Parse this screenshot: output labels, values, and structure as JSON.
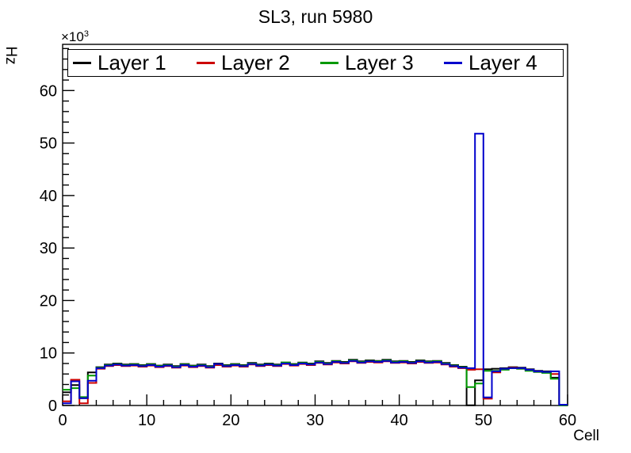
{
  "title": "SL3, run 5980",
  "axis": {
    "y_title": "Hz",
    "y_scale_base": "×10",
    "y_scale_exp": "3",
    "x_title": "Cell",
    "y_tick_labels": [
      0,
      10,
      20,
      30,
      40,
      50,
      60
    ],
    "x_tick_labels": [
      0,
      10,
      20,
      30,
      40,
      50,
      60
    ],
    "minor_step": 2
  },
  "legend": {
    "entries": [
      {
        "label": "Layer 1",
        "color": "#000000"
      },
      {
        "label": "Layer 2",
        "color": "#cc0000"
      },
      {
        "label": "Layer 3",
        "color": "#009900"
      },
      {
        "label": "Layer 4",
        "color": "#0000cc"
      }
    ]
  },
  "chart_data": {
    "type": "line",
    "subtype": "step-histogram",
    "title": "SL3, run 5980",
    "xlabel": "Cell",
    "ylabel": "Hz",
    "y_unit": "1e3 Hz",
    "bins": 60,
    "xlim": [
      0,
      60
    ],
    "ylim": [
      0,
      68.8
    ],
    "ytick_step": 10,
    "minor_tick_step": 2,
    "grid": false,
    "legend_position": "top-inside-horizontal",
    "series": [
      {
        "name": "Layer 1",
        "color": "#000000",
        "values": [
          2.5,
          3.9,
          1.4,
          6.3,
          7.3,
          7.8,
          8.0,
          7.8,
          7.9,
          7.7,
          7.9,
          7.6,
          7.8,
          7.5,
          7.9,
          7.6,
          7.8,
          7.5,
          8.0,
          7.7,
          7.9,
          7.7,
          8.1,
          7.8,
          8.0,
          7.8,
          8.2,
          7.9,
          8.2,
          8.0,
          8.4,
          8.1,
          8.5,
          8.3,
          8.7,
          8.4,
          8.6,
          8.5,
          8.7,
          8.4,
          8.5,
          8.3,
          8.6,
          8.4,
          8.5,
          8.1,
          7.7,
          7.4,
          0.05,
          4.8,
          6.9,
          7.0,
          7.1,
          7.3,
          7.2,
          6.9,
          6.6,
          6.5,
          5.3,
          0.05
        ]
      },
      {
        "name": "Layer 2",
        "color": "#cc0000",
        "values": [
          0.8,
          4.9,
          0.4,
          4.3,
          7.0,
          7.5,
          7.7,
          7.5,
          7.6,
          7.4,
          7.6,
          7.3,
          7.5,
          7.2,
          7.6,
          7.3,
          7.5,
          7.2,
          7.7,
          7.4,
          7.6,
          7.4,
          7.8,
          7.5,
          7.7,
          7.5,
          7.9,
          7.6,
          7.9,
          7.7,
          8.1,
          7.8,
          8.2,
          8.0,
          8.4,
          8.1,
          8.3,
          8.2,
          8.4,
          8.1,
          8.2,
          8.0,
          8.3,
          8.1,
          8.2,
          7.8,
          7.4,
          7.1,
          6.8,
          6.9,
          1.3,
          6.3,
          6.9,
          7.2,
          7.0,
          6.7,
          6.4,
          6.3,
          6.0,
          0.1
        ]
      },
      {
        "name": "Layer 3",
        "color": "#009900",
        "values": [
          3.0,
          3.3,
          1.6,
          5.7,
          7.2,
          7.7,
          7.9,
          7.7,
          7.8,
          7.6,
          7.8,
          7.5,
          7.7,
          7.4,
          7.8,
          7.5,
          7.7,
          7.4,
          7.9,
          7.6,
          7.8,
          7.6,
          8.0,
          7.7,
          7.9,
          7.7,
          8.2,
          7.8,
          8.1,
          7.9,
          8.3,
          8.0,
          8.4,
          8.2,
          8.6,
          8.3,
          8.5,
          8.4,
          8.6,
          8.3,
          8.4,
          8.2,
          8.5,
          8.3,
          8.4,
          8.0,
          7.6,
          7.3,
          3.5,
          4.2,
          6.6,
          6.6,
          6.8,
          7.1,
          7.0,
          6.6,
          6.4,
          6.2,
          5.1,
          0.05
        ]
      },
      {
        "name": "Layer 4",
        "color": "#0000cc",
        "values": [
          0.4,
          4.6,
          1.4,
          4.7,
          7.1,
          7.6,
          7.8,
          7.6,
          7.7,
          7.5,
          7.7,
          7.4,
          7.6,
          7.3,
          7.7,
          7.4,
          7.6,
          7.3,
          7.9,
          7.5,
          7.7,
          7.5,
          7.9,
          7.6,
          7.8,
          7.6,
          8.0,
          7.7,
          8.0,
          7.8,
          8.2,
          7.9,
          8.3,
          8.1,
          8.5,
          8.2,
          8.4,
          8.3,
          8.5,
          8.2,
          8.3,
          8.1,
          8.4,
          8.2,
          8.3,
          7.9,
          7.5,
          7.2,
          7.1,
          51.8,
          1.55,
          6.5,
          7.0,
          7.1,
          7.1,
          6.8,
          6.5,
          6.4,
          6.5,
          0.15
        ]
      }
    ]
  }
}
